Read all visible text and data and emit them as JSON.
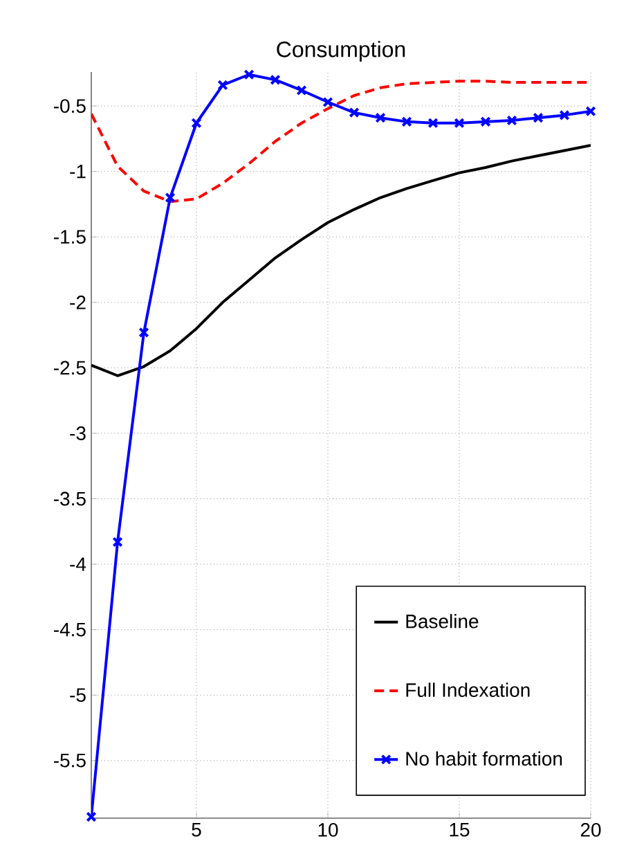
{
  "chart_data": {
    "type": "line",
    "title": "Consumption",
    "x": [
      1,
      2,
      3,
      4,
      5,
      6,
      7,
      8,
      9,
      10,
      11,
      12,
      13,
      14,
      15,
      16,
      17,
      18,
      19,
      20
    ],
    "series": [
      {
        "name": "Baseline",
        "color": "#000000",
        "line_style": "solid",
        "marker": "none",
        "values": [
          -2.48,
          -2.56,
          -2.49,
          -2.37,
          -2.2,
          -2.0,
          -1.83,
          -1.66,
          -1.52,
          -1.39,
          -1.29,
          -1.2,
          -1.13,
          -1.07,
          -1.01,
          -0.97,
          -0.92,
          -0.88,
          -0.84,
          -0.8
        ]
      },
      {
        "name": "Full Indexation",
        "color": "#ff0000",
        "line_style": "dashed",
        "marker": "none",
        "values": [
          -0.56,
          -0.96,
          -1.15,
          -1.23,
          -1.21,
          -1.09,
          -0.94,
          -0.77,
          -0.63,
          -0.52,
          -0.42,
          -0.36,
          -0.33,
          -0.32,
          -0.31,
          -0.31,
          -0.32,
          -0.32,
          -0.32,
          -0.32
        ]
      },
      {
        "name": "No habit formation",
        "color": "#0000ff",
        "line_style": "solid",
        "marker": "cross",
        "values": [
          -5.93,
          -3.83,
          -2.23,
          -1.2,
          -0.63,
          -0.34,
          -0.26,
          -0.3,
          -0.38,
          -0.47,
          -0.55,
          -0.59,
          -0.62,
          -0.63,
          -0.63,
          -0.62,
          -0.61,
          -0.59,
          -0.57,
          -0.54
        ]
      }
    ],
    "xlim": [
      1,
      20
    ],
    "xticks": [
      5,
      10,
      15,
      20
    ],
    "ylim": [
      -5.94,
      -0.24
    ],
    "yticks": [
      -5.5,
      -5,
      -4.5,
      -4,
      -3.5,
      -3,
      -2.5,
      -2,
      -1.5,
      -1,
      -0.5
    ],
    "grid": true,
    "legend": "bottom right"
  }
}
